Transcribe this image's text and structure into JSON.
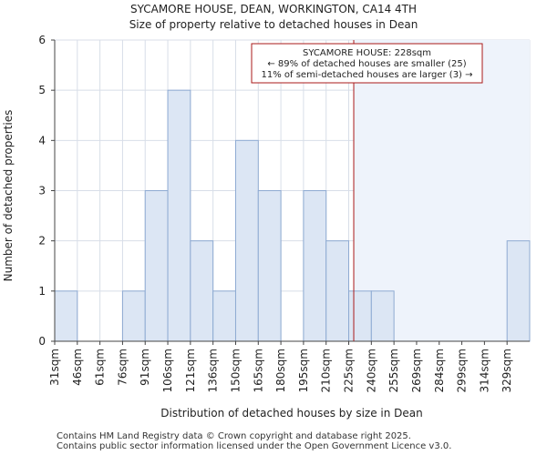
{
  "header": {
    "title": "SYCAMORE HOUSE, DEAN, WORKINGTON, CA14 4TH",
    "subtitle": "Size of property relative to detached houses in Dean"
  },
  "footer": {
    "line1": "Contains HM Land Registry data © Crown copyright and database right 2025.",
    "line2": "Contains public sector information licensed under the Open Government Licence v3.0."
  },
  "chart_data": {
    "type": "bar",
    "title": "SYCAMORE HOUSE, DEAN, WORKINGTON, CA14 4TH",
    "subtitle": "Size of property relative to detached houses in Dean",
    "xlabel": "Distribution of detached houses by size in Dean",
    "ylabel": "Number of detached properties",
    "categories": [
      "31sqm",
      "46sqm",
      "61sqm",
      "76sqm",
      "91sqm",
      "106sqm",
      "121sqm",
      "136sqm",
      "150sqm",
      "165sqm",
      "180sqm",
      "195sqm",
      "210sqm",
      "225sqm",
      "240sqm",
      "255sqm",
      "269sqm",
      "284sqm",
      "299sqm",
      "314sqm",
      "329sqm"
    ],
    "values": [
      1,
      0,
      0,
      1,
      3,
      5,
      2,
      1,
      4,
      3,
      0,
      3,
      2,
      1,
      1,
      0,
      0,
      0,
      0,
      0,
      2
    ],
    "ylim": [
      0,
      6
    ],
    "yticks": [
      0,
      1,
      2,
      3,
      4,
      5,
      6
    ],
    "grid": true,
    "marker": {
      "value_sqm": 228,
      "label_lines": [
        "SYCAMORE HOUSE: 228sqm",
        "← 89% of detached houses are smaller (25)",
        "11% of semi-detached houses are larger (3) →"
      ]
    },
    "colors": {
      "bar_fill": "#dce6f4",
      "bar_stroke": "#8eaad2",
      "marker": "#aa1a1a",
      "grid": "#d8dee8",
      "highlight_region": "#eef3fb"
    }
  }
}
